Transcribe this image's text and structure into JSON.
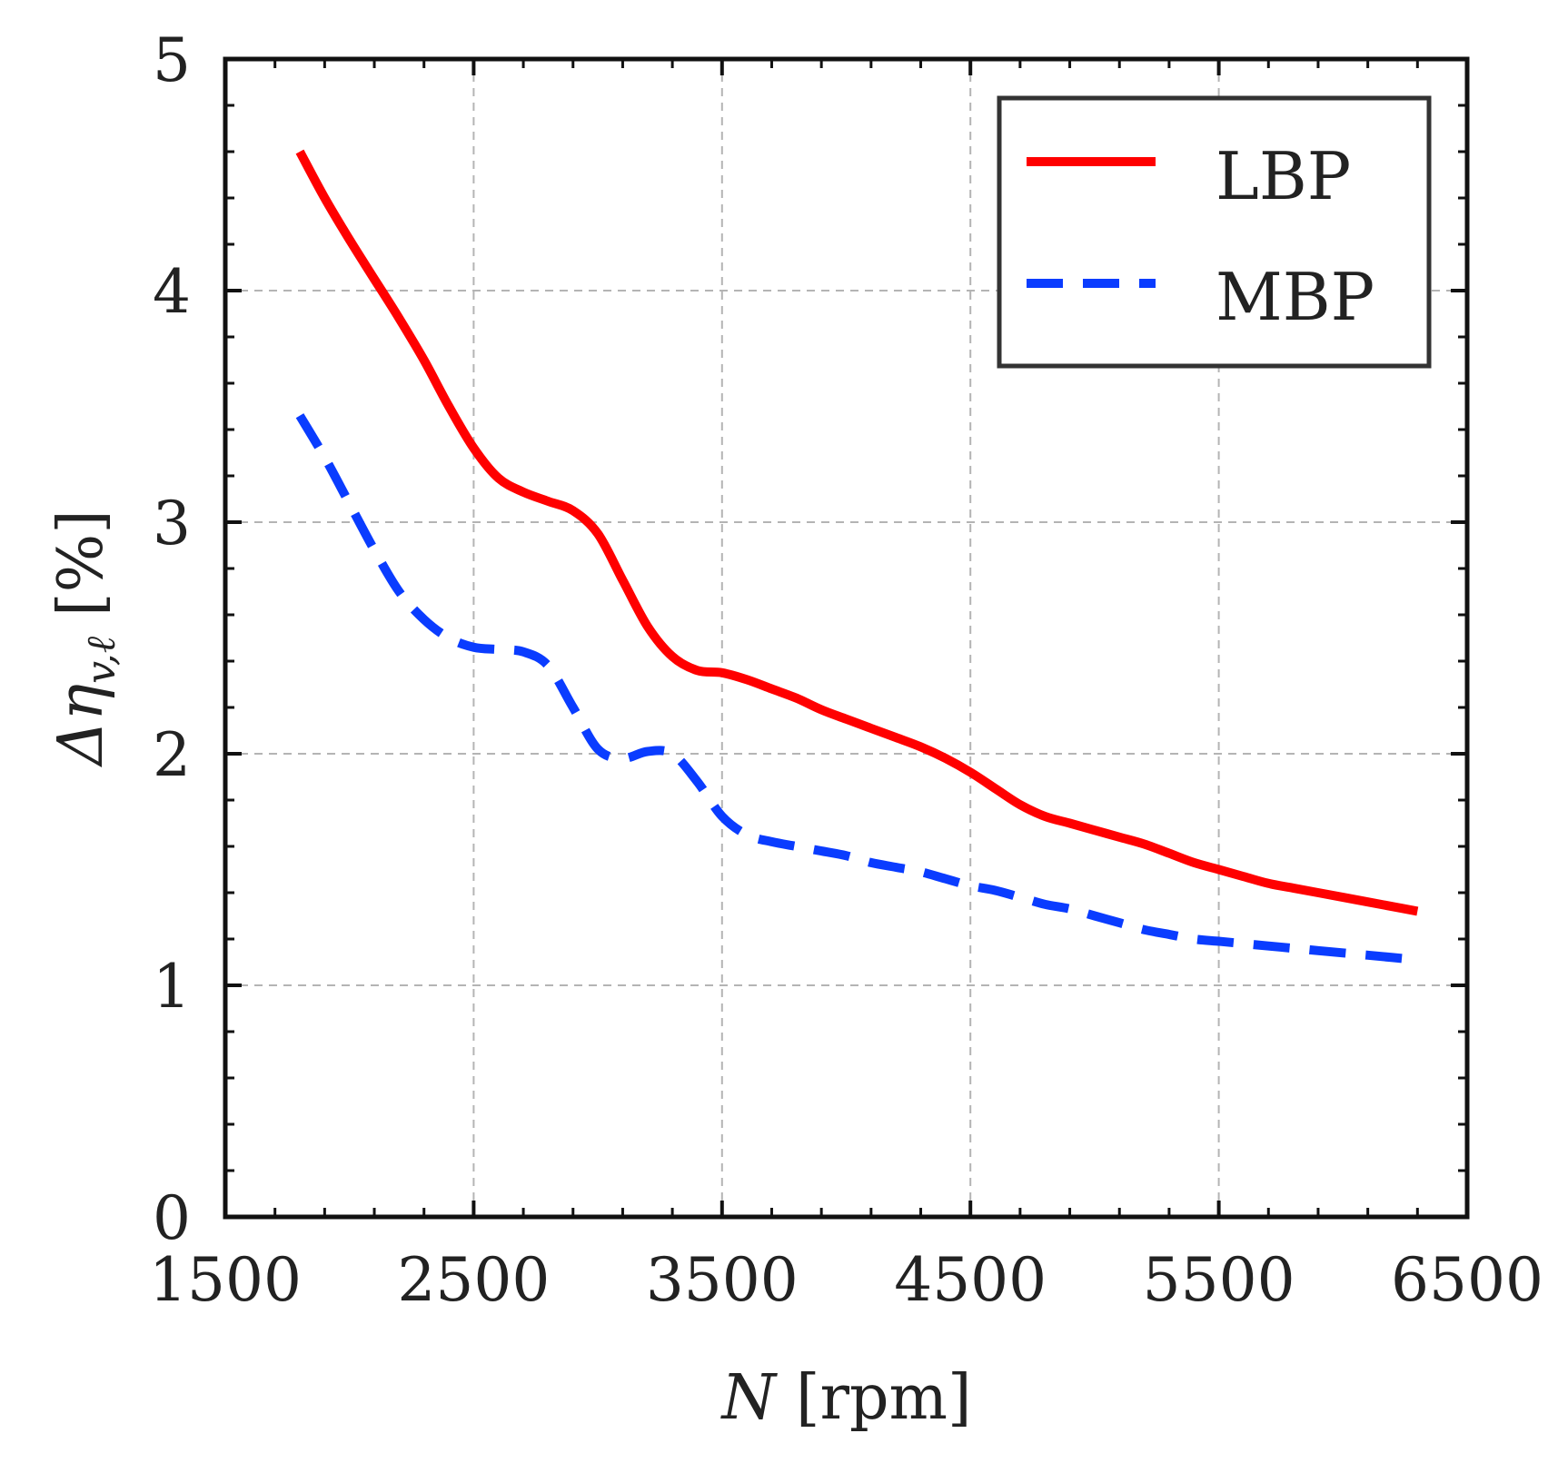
{
  "chart_data": {
    "type": "line",
    "title": "",
    "xlabel": "N [rpm]",
    "xlabel_var": "N",
    "xlabel_unit": "[rpm]",
    "ylabel": "Δη v,ℓ [%]",
    "ylabel_symbol": "Δη",
    "ylabel_subscript": "v,ℓ",
    "ylabel_unit": "[%]",
    "xlim": [
      1500,
      6500
    ],
    "ylim": [
      0,
      5
    ],
    "xticks": [
      1500,
      2500,
      3500,
      4500,
      5500,
      6500
    ],
    "yticks": [
      0,
      1,
      2,
      3,
      4,
      5
    ],
    "x_minor_step": 200,
    "y_minor_step": 0.2,
    "grid": true,
    "legend_position": "top-right",
    "series": [
      {
        "name": "LBP",
        "color": "#ff0000",
        "style": "solid",
        "x": [
          1800,
          1900,
          2000,
          2100,
          2200,
          2300,
          2400,
          2500,
          2600,
          2700,
          2800,
          2900,
          3000,
          3100,
          3200,
          3300,
          3400,
          3500,
          3600,
          3700,
          3800,
          3900,
          4000,
          4100,
          4200,
          4300,
          4400,
          4500,
          4600,
          4700,
          4800,
          4900,
          5000,
          5100,
          5200,
          5300,
          5400,
          5500,
          5600,
          5700,
          5800,
          5900,
          6000,
          6100,
          6200,
          6300
        ],
        "values": [
          4.6,
          4.4,
          4.22,
          4.05,
          3.88,
          3.7,
          3.5,
          3.32,
          3.19,
          3.13,
          3.09,
          3.05,
          2.95,
          2.75,
          2.55,
          2.42,
          2.36,
          2.35,
          2.32,
          2.28,
          2.24,
          2.19,
          2.15,
          2.11,
          2.07,
          2.03,
          1.98,
          1.92,
          1.85,
          1.78,
          1.73,
          1.7,
          1.67,
          1.64,
          1.61,
          1.57,
          1.53,
          1.5,
          1.47,
          1.44,
          1.42,
          1.4,
          1.38,
          1.36,
          1.34,
          1.32
        ]
      },
      {
        "name": "MBP",
        "color": "#0a3cff",
        "style": "dashed",
        "x": [
          1800,
          1900,
          2000,
          2100,
          2200,
          2300,
          2400,
          2500,
          2600,
          2700,
          2800,
          2900,
          3000,
          3100,
          3200,
          3300,
          3400,
          3500,
          3600,
          3700,
          3800,
          3900,
          4000,
          4100,
          4200,
          4300,
          4400,
          4500,
          4600,
          4700,
          4800,
          4900,
          5000,
          5100,
          5200,
          5300,
          5400,
          5500,
          5600,
          5700,
          5800,
          5900,
          6000,
          6100,
          6200,
          6300
        ],
        "values": [
          3.46,
          3.28,
          3.08,
          2.88,
          2.7,
          2.58,
          2.5,
          2.46,
          2.45,
          2.44,
          2.38,
          2.2,
          2.02,
          1.98,
          2.01,
          2.0,
          1.88,
          1.73,
          1.65,
          1.62,
          1.6,
          1.58,
          1.56,
          1.53,
          1.51,
          1.49,
          1.46,
          1.43,
          1.41,
          1.38,
          1.35,
          1.33,
          1.3,
          1.27,
          1.24,
          1.22,
          1.2,
          1.19,
          1.18,
          1.17,
          1.16,
          1.15,
          1.14,
          1.13,
          1.12,
          1.11
        ]
      }
    ]
  }
}
